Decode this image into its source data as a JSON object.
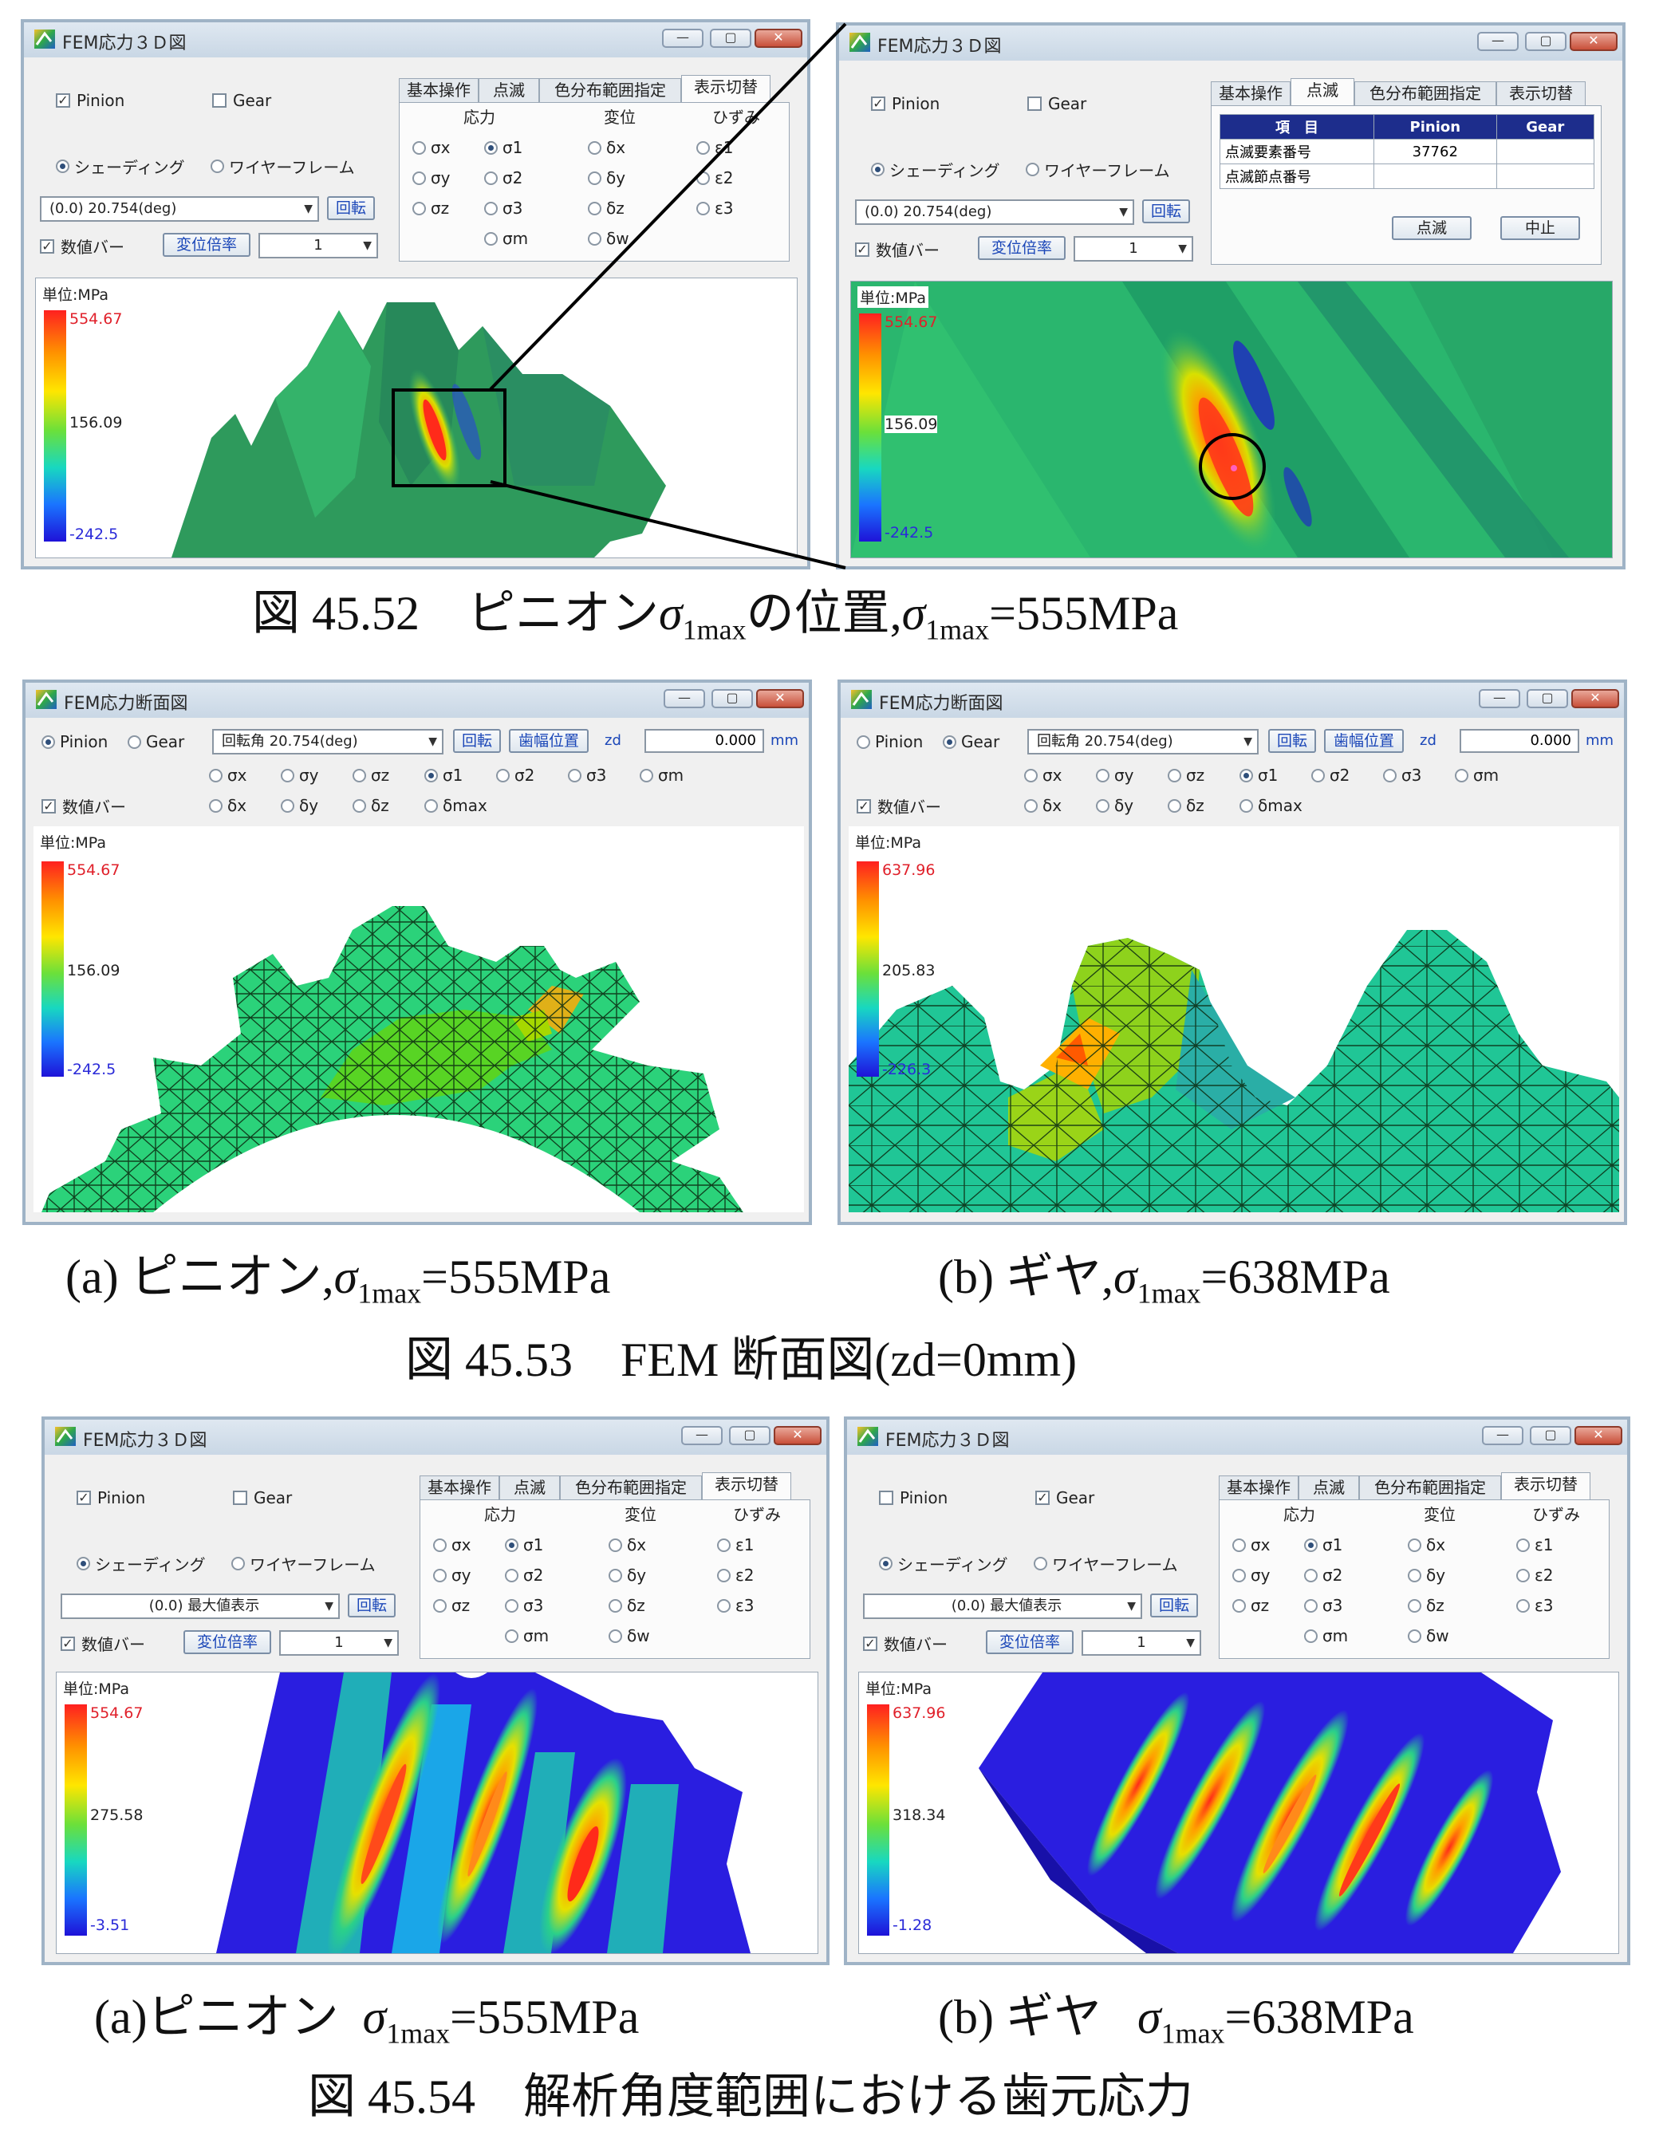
{
  "app": {
    "title_3d": "FEM応力３Ｄ図",
    "title_section": "FEM応力断面図"
  },
  "controls": {
    "pinion": "Pinion",
    "gear": "Gear",
    "shading": "シェーディング",
    "wireframe": "ワイヤーフレーム",
    "angle_value": "(0.0)    20.754(deg)",
    "angle_max": "(0.0) 最大値表示",
    "rotate": "回転",
    "numbar": "数値バー",
    "disp_ratio": "変位倍率",
    "ratio_value": "1",
    "section_angle": "回転角 20.754(deg)",
    "tooth_width_pos": "歯幅位置",
    "zd_label": "zd",
    "zd_value": "0.000",
    "zd_unit": "mm"
  },
  "tabs": [
    "基本操作",
    "点滅",
    "色分布範囲指定",
    "表示切替"
  ],
  "groups": {
    "stress": "応力",
    "displacement": "変位",
    "strain": "ひずみ"
  },
  "options": {
    "stress": [
      "σx",
      "σ1",
      "σy",
      "σ2",
      "σz",
      "σ3",
      "σm"
    ],
    "displacement": [
      "δx",
      "δy",
      "δz",
      "δw"
    ],
    "strain": [
      "ε1",
      "ε2",
      "ε3"
    ],
    "section_row1": [
      "σx",
      "σy",
      "σz",
      "σ1",
      "σ2",
      "σ3",
      "σm"
    ],
    "section_row2": [
      "δx",
      "δy",
      "δz",
      "δmax"
    ]
  },
  "blink_table": {
    "headers": [
      "項　目",
      "Pinion",
      "Gear"
    ],
    "rows": [
      [
        "点滅要素番号",
        "37762",
        ""
      ],
      [
        "点滅節点番号",
        "",
        ""
      ]
    ],
    "blink_button": "点滅",
    "stop_button": "中止"
  },
  "unit": "単位:MPa",
  "scales": {
    "pinion": [
      "554.67",
      "156.09",
      "-242.5"
    ],
    "gear_section": [
      "637.96",
      "205.83",
      "-226.3"
    ],
    "pinion_max": [
      "554.67",
      "275.58",
      "-3.51"
    ],
    "gear_max": [
      "637.96",
      "318.34",
      "-1.28"
    ]
  },
  "captions": {
    "fig52_prefix": "図 45.52　ピニオン",
    "fig52_mid": "の位置,",
    "fig52_value": "=555MPa",
    "sub_a_pinion": "(a)  ピニオン,",
    "sub_a_value": "=555MPa",
    "sub_b_gear": "(b)  ギヤ,",
    "sub_b_value": "=638MPa",
    "fig53": "図 45.53　FEM 断面図(zd=0mm)",
    "sub_c_pinion": "(a)ピニオン",
    "sub_c_value": "=555MPa",
    "sub_d_gear": "(b)  ギヤ",
    "sub_d_value": "=638MPa",
    "fig54": "図 45.54　解析角度範囲における歯元応力",
    "sigma": "σ",
    "sigma_sub": "1max"
  }
}
